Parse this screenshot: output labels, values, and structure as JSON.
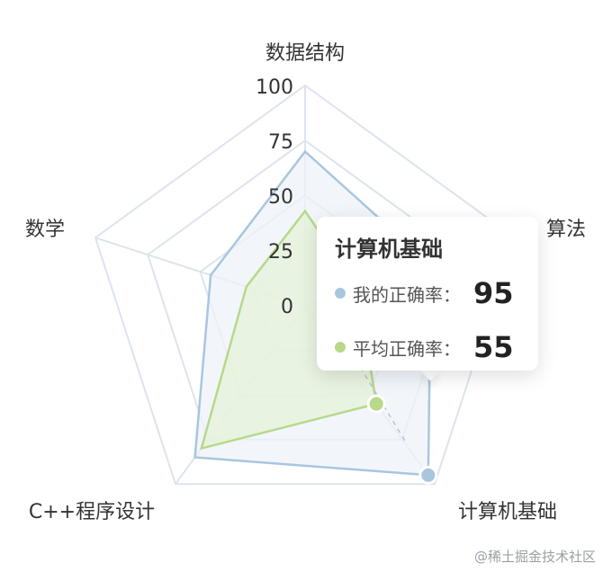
{
  "chart_data": {
    "type": "radar",
    "indicators": [
      "数据结构",
      "算法",
      "计算机基础",
      "C++程序设计",
      "数学"
    ],
    "max": 100,
    "ticks": [
      "100",
      "75",
      "50",
      "25",
      "0"
    ],
    "series": [
      {
        "name": "我的正确率",
        "values": [
          70,
          60,
          95,
          85,
          45
        ],
        "color": "#a9c6de",
        "fill": "#edf3f9"
      },
      {
        "name": "平均正确率",
        "values": [
          43,
          25,
          55,
          80,
          28
        ],
        "color": "#b6d98a",
        "fill": "#e6f1d8"
      }
    ],
    "active_indicator": "计算机基础"
  },
  "tooltip": {
    "title": "计算机基础",
    "rows": [
      {
        "label": "我的正确率：",
        "value": "95",
        "color": "#a9c6de"
      },
      {
        "label": "平均正确率：",
        "value": "55",
        "color": "#b6d98a"
      }
    ]
  },
  "watermark": "@稀土掘金技术社区"
}
